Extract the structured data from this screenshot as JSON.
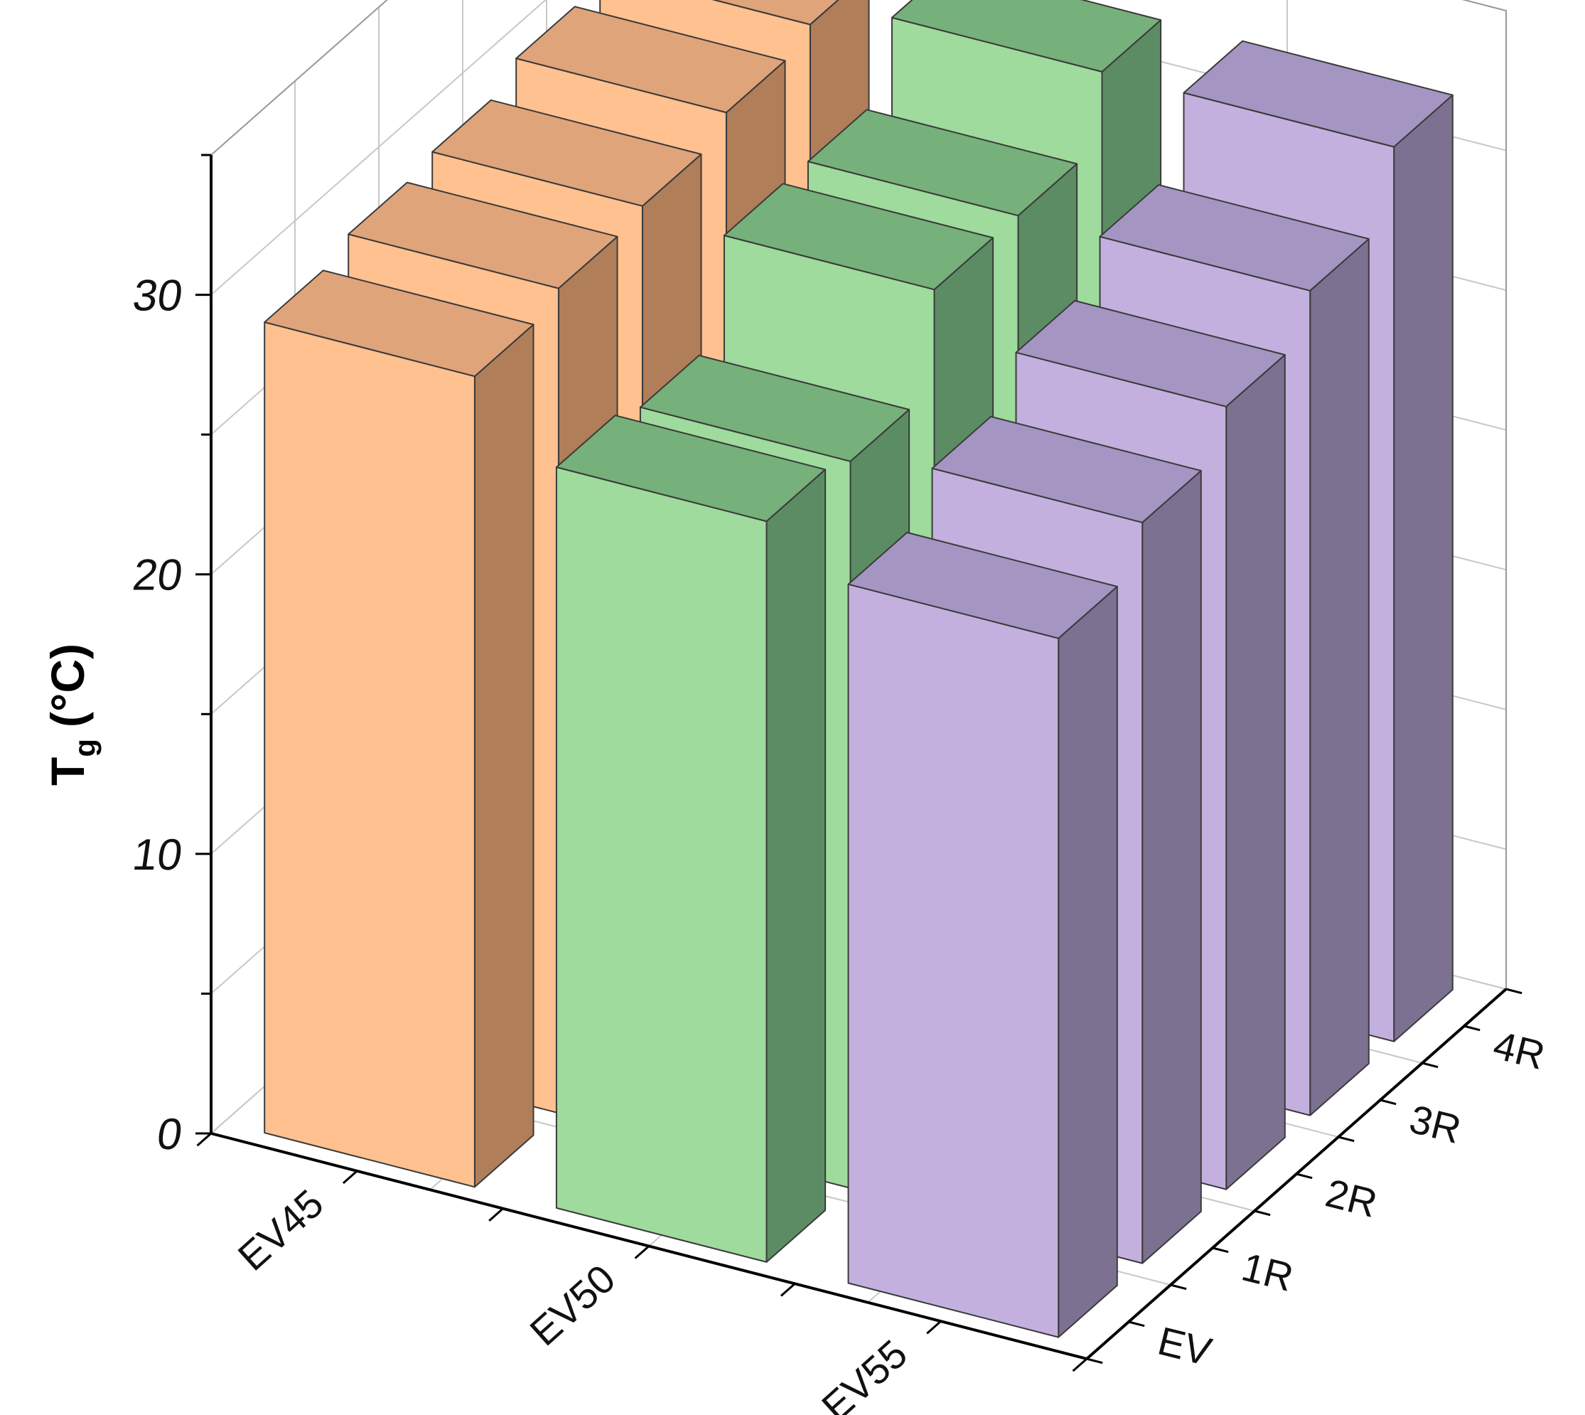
{
  "chart_data": {
    "type": "bar",
    "subtype": "3d-bar",
    "x_categories": [
      "EV45",
      "EV50",
      "EV55"
    ],
    "y_categories": [
      "EV",
      "1R",
      "2R",
      "3R",
      "4R"
    ],
    "ylabel_main": "T",
    "ylabel_sub": "g",
    "ylabel_unit": "(°C)",
    "zlim": [
      0,
      35
    ],
    "zticks": [
      0,
      10,
      20,
      30
    ],
    "grid": true,
    "series": [
      {
        "values": [
          29.0,
          29.5,
          29.8,
          30.5,
          31.0
        ],
        "front_color": "#FFC18F",
        "side_color": "#B07E59",
        "top_color": "#E0A47A"
      },
      {
        "values": [
          26.5,
          26.0,
          29.5,
          29.5,
          32.0
        ],
        "front_color": "#9EDB9C",
        "side_color": "#5C8C64",
        "top_color": "#76B07A"
      },
      {
        "values": [
          25.0,
          26.5,
          28.0,
          29.5,
          32.0
        ],
        "front_color": "#C4B0DE",
        "side_color": "#7C7191",
        "top_color": "#A595C2"
      }
    ]
  }
}
